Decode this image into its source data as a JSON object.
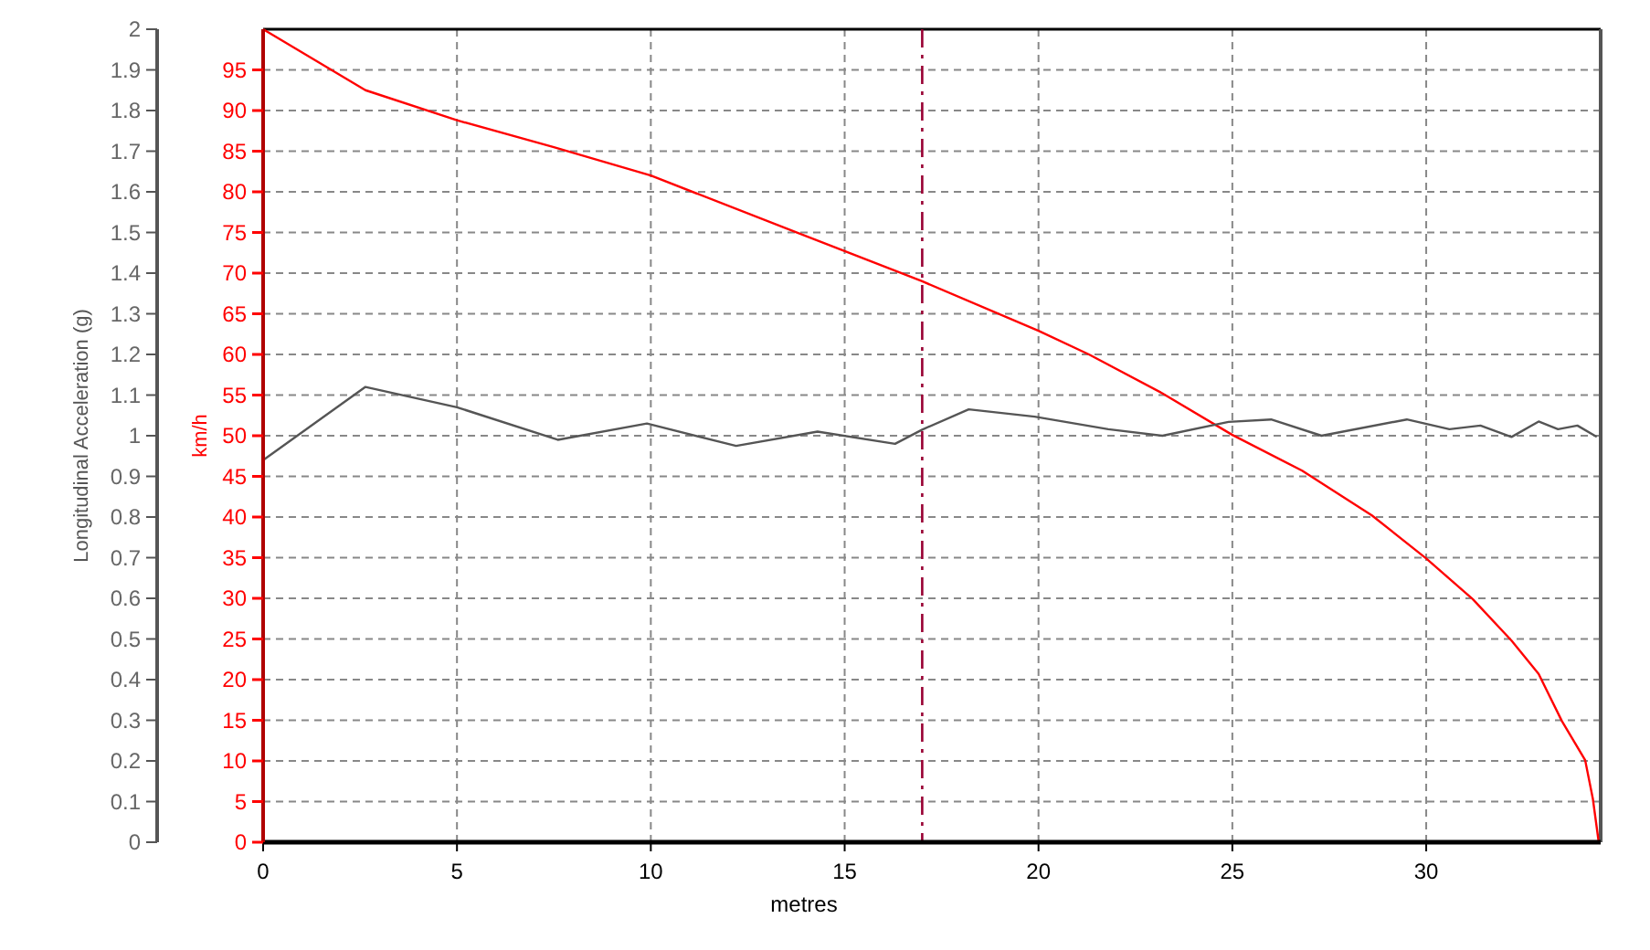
{
  "chart_data": {
    "type": "line",
    "xlabel": "metres",
    "ylabel": "Longitudinal Acceleration (g)",
    "y2label": "km/h",
    "xlim": [
      0,
      34.5
    ],
    "xticks": [
      0,
      5,
      10,
      15,
      20,
      25,
      30
    ],
    "ylim": [
      0,
      2
    ],
    "yticks": [
      0,
      0.1,
      0.2,
      0.3,
      0.4,
      0.5,
      0.6,
      0.7,
      0.8,
      0.9,
      1,
      1.1,
      1.2,
      1.3,
      1.4,
      1.5,
      1.6,
      1.7,
      1.8,
      1.9,
      2
    ],
    "y2lim": [
      0,
      100
    ],
    "y2ticks": [
      0,
      5,
      10,
      15,
      20,
      25,
      30,
      35,
      40,
      45,
      50,
      55,
      60,
      65,
      70,
      75,
      80,
      85,
      90,
      95
    ],
    "grid": true,
    "line_style": "solid",
    "ref_lines": [
      {
        "axis": "x",
        "value": 17,
        "color": "#990033",
        "line_style": "dashed"
      }
    ],
    "series": [
      {
        "color": "#ff0000",
        "axis": "y2",
        "x": [
          0,
          2.64,
          5,
          7.5,
          10,
          15,
          17,
          20,
          21.3,
          23.2,
          25,
          26.8,
          28.6,
          30,
          31.2,
          32.2,
          32.9,
          33.5,
          34.1,
          34.3,
          34.45
        ],
        "values": [
          100,
          92.5,
          88.8,
          85.5,
          82,
          72.7,
          69,
          62.9,
          60,
          55.2,
          50.1,
          45.7,
          40.2,
          34.9,
          29.9,
          24.8,
          20.7,
          14.9,
          10.1,
          5.3,
          0
        ]
      },
      {
        "color": "#555555",
        "x": [
          0,
          2.64,
          5,
          7.6,
          9.9,
          12.2,
          14.3,
          16.3,
          17,
          18.2,
          19.9,
          21.8,
          23.2,
          24.9,
          26,
          27.3,
          29.5,
          30.6,
          31.4,
          32.2,
          32.9,
          33.4,
          33.9,
          34.4
        ],
        "values": [
          0.94,
          1.12,
          1.07,
          0.99,
          1.03,
          0.975,
          1.01,
          0.98,
          1.015,
          1.065,
          1.047,
          1.016,
          1,
          1.034,
          1.04,
          1,
          1.04,
          1.016,
          1.025,
          0.997,
          1.035,
          1.016,
          1.025,
          0.997
        ]
      }
    ]
  }
}
